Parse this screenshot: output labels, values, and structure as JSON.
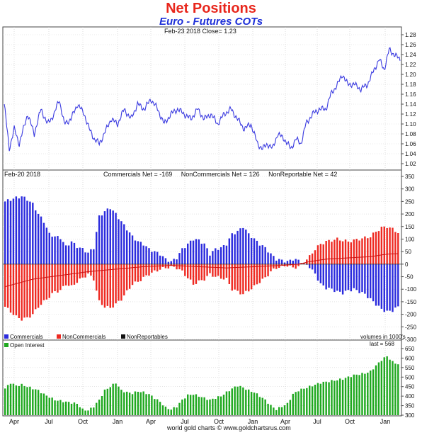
{
  "title": "Net Positions",
  "subtitle": "Euro - Futures COTs",
  "footer": "world gold charts © www.goldchartsrus.com",
  "colors": {
    "price_line": "#3a3ae0",
    "commercials": "#2b2bdd",
    "noncommercials": "#ee2a22",
    "nonreportables": "#111111",
    "open_interest": "#1fa81f",
    "title": "#e8261c",
    "subtitle": "#1d2fd8"
  },
  "x_axis": {
    "labels": [
      "Apr",
      "Jul",
      "Oct",
      "Jan",
      "Apr",
      "Jul",
      "Oct",
      "Jan",
      "Apr",
      "Jul",
      "Oct",
      "Jan"
    ]
  },
  "chart_data": [
    {
      "type": "line",
      "panel": "price",
      "header_left": "Feb-23  2018   Close= 1.23",
      "ylim": [
        1.01,
        1.29
      ],
      "y_ticks": [
        "1.28",
        "1.26",
        "1.24",
        "1.22",
        "1.20",
        "1.18",
        "1.16",
        "1.14",
        "1.12",
        "1.10",
        "1.08",
        "1.06",
        "1.04",
        "1.02"
      ],
      "anchors": [
        [
          0,
          1.14
        ],
        [
          6,
          1.05
        ],
        [
          12,
          1.09
        ],
        [
          18,
          1.06
        ],
        [
          28,
          1.12
        ],
        [
          36,
          1.08
        ],
        [
          44,
          1.13
        ],
        [
          52,
          1.1
        ],
        [
          60,
          1.12
        ],
        [
          66,
          1.15
        ],
        [
          72,
          1.1
        ],
        [
          80,
          1.11
        ],
        [
          88,
          1.14
        ],
        [
          96,
          1.12
        ],
        [
          102,
          1.09
        ],
        [
          108,
          1.07
        ],
        [
          114,
          1.06
        ],
        [
          120,
          1.08
        ],
        [
          128,
          1.11
        ],
        [
          136,
          1.1
        ],
        [
          144,
          1.13
        ],
        [
          152,
          1.11
        ],
        [
          160,
          1.14
        ],
        [
          168,
          1.13
        ],
        [
          176,
          1.15
        ],
        [
          184,
          1.13
        ],
        [
          192,
          1.1
        ],
        [
          200,
          1.12
        ],
        [
          208,
          1.13
        ],
        [
          216,
          1.12
        ],
        [
          224,
          1.11
        ],
        [
          232,
          1.13
        ],
        [
          240,
          1.11
        ],
        [
          248,
          1.12
        ],
        [
          256,
          1.1
        ],
        [
          264,
          1.12
        ],
        [
          272,
          1.13
        ],
        [
          280,
          1.11
        ],
        [
          288,
          1.09
        ],
        [
          296,
          1.1
        ],
        [
          304,
          1.06
        ],
        [
          310,
          1.05
        ],
        [
          316,
          1.06
        ],
        [
          322,
          1.05
        ],
        [
          328,
          1.08
        ],
        [
          336,
          1.07
        ],
        [
          344,
          1.05
        ],
        [
          350,
          1.07
        ],
        [
          356,
          1.06
        ],
        [
          362,
          1.1
        ],
        [
          370,
          1.12
        ],
        [
          378,
          1.13
        ],
        [
          386,
          1.13
        ],
        [
          392,
          1.16
        ],
        [
          400,
          1.18
        ],
        [
          406,
          1.2
        ],
        [
          412,
          1.18
        ],
        [
          420,
          1.18
        ],
        [
          428,
          1.17
        ],
        [
          436,
          1.18
        ],
        [
          444,
          1.21
        ],
        [
          450,
          1.23
        ],
        [
          456,
          1.21
        ],
        [
          462,
          1.25
        ],
        [
          468,
          1.24
        ],
        [
          475,
          1.23
        ]
      ],
      "close": 1.23
    },
    {
      "type": "bar",
      "panel": "net_positions",
      "header_left": "Feb-20  2018",
      "header_stats": "Commercials Net = -169     NonCommercials Net = 126     NonReportable Net = 42",
      "ylim": [
        -300,
        350
      ],
      "y_ticks": [
        "350",
        "300",
        "250",
        "200",
        "150",
        "100",
        "50",
        "0",
        "-50",
        "-100",
        "-150",
        "-200",
        "-250",
        "-300"
      ],
      "legend": [
        "Commercials",
        "NonCommercials",
        "NonReportables"
      ],
      "units_note": "volumes in 1000's",
      "latest": {
        "commercials": -169,
        "noncommercials": 126,
        "nonreportables": 42
      },
      "series_anchors": {
        "commercials": [
          [
            0,
            250
          ],
          [
            4,
            265
          ],
          [
            6,
            270
          ],
          [
            8,
            258
          ],
          [
            10,
            240
          ],
          [
            12,
            200
          ],
          [
            14,
            170
          ],
          [
            16,
            120
          ],
          [
            18,
            110
          ],
          [
            20,
            105
          ],
          [
            22,
            70
          ],
          [
            24,
            90
          ],
          [
            26,
            70
          ],
          [
            28,
            60
          ],
          [
            30,
            45
          ],
          [
            32,
            65
          ],
          [
            34,
            190
          ],
          [
            36,
            210
          ],
          [
            38,
            225
          ],
          [
            40,
            200
          ],
          [
            42,
            170
          ],
          [
            44,
            140
          ],
          [
            46,
            110
          ],
          [
            48,
            90
          ],
          [
            50,
            80
          ],
          [
            52,
            60
          ],
          [
            54,
            50
          ],
          [
            56,
            40
          ],
          [
            58,
            20
          ],
          [
            60,
            10
          ],
          [
            62,
            25
          ],
          [
            64,
            60
          ],
          [
            66,
            80
          ],
          [
            68,
            100
          ],
          [
            70,
            95
          ],
          [
            72,
            80
          ],
          [
            74,
            40
          ],
          [
            76,
            60
          ],
          [
            78,
            65
          ],
          [
            80,
            80
          ],
          [
            82,
            120
          ],
          [
            84,
            130
          ],
          [
            86,
            150
          ],
          [
            88,
            120
          ],
          [
            90,
            100
          ],
          [
            92,
            80
          ],
          [
            94,
            65
          ],
          [
            96,
            40
          ],
          [
            98,
            20
          ],
          [
            100,
            15
          ],
          [
            102,
            10
          ],
          [
            104,
            20
          ],
          [
            106,
            15
          ],
          [
            108,
            0
          ],
          [
            110,
            -10
          ],
          [
            112,
            -40
          ],
          [
            114,
            -80
          ],
          [
            116,
            -95
          ],
          [
            118,
            -100
          ],
          [
            120,
            -110
          ],
          [
            122,
            -115
          ],
          [
            124,
            -105
          ],
          [
            126,
            -100
          ],
          [
            128,
            -110
          ],
          [
            130,
            -120
          ],
          [
            132,
            -140
          ],
          [
            134,
            -160
          ],
          [
            136,
            -180
          ],
          [
            138,
            -190
          ],
          [
            140,
            -185
          ],
          [
            142,
            -170
          ]
        ],
        "noncommercials": [
          [
            0,
            -170
          ],
          [
            4,
            -210
          ],
          [
            6,
            -220
          ],
          [
            8,
            -215
          ],
          [
            10,
            -200
          ],
          [
            12,
            -170
          ],
          [
            14,
            -150
          ],
          [
            16,
            -130
          ],
          [
            18,
            -110
          ],
          [
            20,
            -105
          ],
          [
            22,
            -80
          ],
          [
            24,
            -90
          ],
          [
            26,
            -70
          ],
          [
            28,
            -55
          ],
          [
            30,
            -40
          ],
          [
            32,
            -60
          ],
          [
            34,
            -150
          ],
          [
            36,
            -170
          ],
          [
            38,
            -175
          ],
          [
            40,
            -160
          ],
          [
            42,
            -140
          ],
          [
            44,
            -110
          ],
          [
            46,
            -80
          ],
          [
            48,
            -70
          ],
          [
            50,
            -55
          ],
          [
            52,
            -40
          ],
          [
            54,
            -30
          ],
          [
            56,
            -20
          ],
          [
            58,
            -15
          ],
          [
            60,
            -10
          ],
          [
            62,
            -15
          ],
          [
            64,
            -30
          ],
          [
            66,
            -55
          ],
          [
            68,
            -80
          ],
          [
            70,
            -70
          ],
          [
            72,
            -60
          ],
          [
            74,
            -40
          ],
          [
            76,
            -50
          ],
          [
            78,
            -55
          ],
          [
            80,
            -60
          ],
          [
            82,
            -100
          ],
          [
            84,
            -110
          ],
          [
            86,
            -120
          ],
          [
            88,
            -105
          ],
          [
            90,
            -90
          ],
          [
            92,
            -70
          ],
          [
            94,
            -55
          ],
          [
            96,
            -30
          ],
          [
            98,
            -15
          ],
          [
            100,
            -10
          ],
          [
            102,
            -5
          ],
          [
            104,
            -15
          ],
          [
            106,
            -10
          ],
          [
            108,
            10
          ],
          [
            110,
            30
          ],
          [
            112,
            60
          ],
          [
            114,
            80
          ],
          [
            116,
            90
          ],
          [
            118,
            95
          ],
          [
            120,
            100
          ],
          [
            122,
            95
          ],
          [
            124,
            90
          ],
          [
            126,
            95
          ],
          [
            128,
            100
          ],
          [
            130,
            105
          ],
          [
            132,
            110
          ],
          [
            134,
            130
          ],
          [
            136,
            145
          ],
          [
            138,
            150
          ],
          [
            140,
            140
          ],
          [
            142,
            126
          ]
        ],
        "nonreportables": [
          [
            0,
            -90
          ],
          [
            10,
            -60
          ],
          [
            20,
            -45
          ],
          [
            30,
            -30
          ],
          [
            40,
            -20
          ],
          [
            50,
            -10
          ],
          [
            60,
            -5
          ],
          [
            70,
            -10
          ],
          [
            80,
            -15
          ],
          [
            90,
            -10
          ],
          [
            100,
            -5
          ],
          [
            106,
            0
          ],
          [
            110,
            10
          ],
          [
            116,
            20
          ],
          [
            124,
            25
          ],
          [
            132,
            30
          ],
          [
            138,
            40
          ],
          [
            142,
            42
          ]
        ]
      }
    },
    {
      "type": "bar",
      "panel": "open_interest",
      "legend": [
        "Open Interest"
      ],
      "last_label": "last = 568",
      "ylim": [
        300,
        650
      ],
      "y_ticks": [
        "650",
        "600",
        "550",
        "500",
        "450",
        "400",
        "350",
        "300"
      ],
      "last": 568,
      "anchors": [
        [
          0,
          440
        ],
        [
          2,
          470
        ],
        [
          4,
          455
        ],
        [
          6,
          460
        ],
        [
          8,
          450
        ],
        [
          10,
          440
        ],
        [
          12,
          430
        ],
        [
          14,
          410
        ],
        [
          16,
          395
        ],
        [
          18,
          380
        ],
        [
          20,
          375
        ],
        [
          22,
          370
        ],
        [
          24,
          365
        ],
        [
          26,
          360
        ],
        [
          28,
          330
        ],
        [
          30,
          325
        ],
        [
          32,
          345
        ],
        [
          34,
          380
        ],
        [
          36,
          430
        ],
        [
          38,
          450
        ],
        [
          40,
          470
        ],
        [
          42,
          430
        ],
        [
          44,
          420
        ],
        [
          46,
          415
        ],
        [
          48,
          425
        ],
        [
          50,
          420
        ],
        [
          52,
          410
        ],
        [
          54,
          390
        ],
        [
          56,
          370
        ],
        [
          58,
          340
        ],
        [
          60,
          330
        ],
        [
          62,
          345
        ],
        [
          64,
          380
        ],
        [
          66,
          405
        ],
        [
          68,
          410
        ],
        [
          70,
          400
        ],
        [
          72,
          390
        ],
        [
          74,
          380
        ],
        [
          76,
          390
        ],
        [
          78,
          400
        ],
        [
          80,
          420
        ],
        [
          82,
          440
        ],
        [
          84,
          455
        ],
        [
          86,
          445
        ],
        [
          88,
          430
        ],
        [
          90,
          420
        ],
        [
          92,
          400
        ],
        [
          94,
          380
        ],
        [
          96,
          350
        ],
        [
          98,
          330
        ],
        [
          100,
          345
        ],
        [
          102,
          360
        ],
        [
          104,
          410
        ],
        [
          106,
          430
        ],
        [
          108,
          440
        ],
        [
          110,
          450
        ],
        [
          112,
          460
        ],
        [
          114,
          470
        ],
        [
          116,
          475
        ],
        [
          118,
          480
        ],
        [
          120,
          485
        ],
        [
          122,
          490
        ],
        [
          124,
          500
        ],
        [
          126,
          510
        ],
        [
          128,
          515
        ],
        [
          130,
          520
        ],
        [
          132,
          530
        ],
        [
          134,
          560
        ],
        [
          136,
          590
        ],
        [
          138,
          610
        ],
        [
          140,
          580
        ],
        [
          142,
          568
        ]
      ]
    }
  ]
}
